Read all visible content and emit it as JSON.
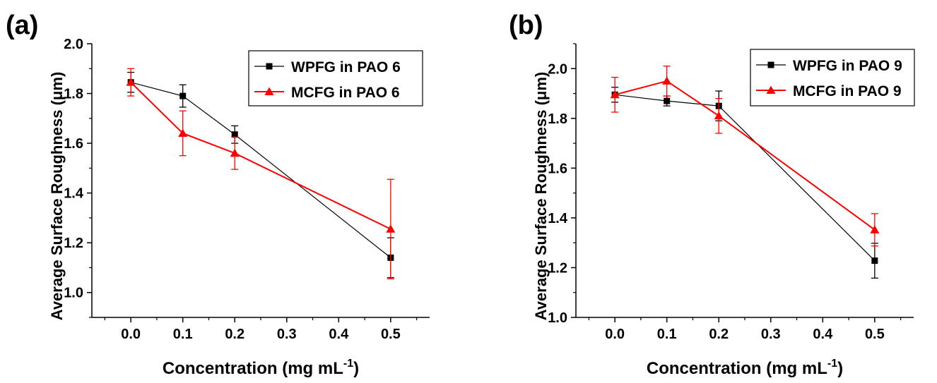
{
  "chart_data": [
    {
      "type": "line",
      "panel_label": "(a)",
      "xlabel": "Concentration (mg mL",
      "xlabel_sup": "-1",
      "xlabel_end": ")",
      "ylabel": "Average Surface Roughness (μm)",
      "xlim": [
        -0.075,
        0.575
      ],
      "ylim": [
        0.9,
        2.0
      ],
      "x_ticks": [
        0.0,
        0.1,
        0.2,
        0.3,
        0.4,
        0.5
      ],
      "x_tick_labels": [
        "0.0",
        "0.1",
        "0.2",
        "0.3",
        "0.4",
        "0.5"
      ],
      "y_ticks": [
        1.0,
        1.2,
        1.4,
        1.6,
        1.8,
        2.0
      ],
      "y_tick_labels": [
        "1.0",
        "1.2",
        "1.4",
        "1.6",
        "1.8",
        "2.0"
      ],
      "legend_position": "top-right",
      "series": [
        {
          "name": "WPFG in PAO 6",
          "color": "#000000",
          "marker": "square",
          "x": [
            0.0,
            0.1,
            0.2,
            0.5
          ],
          "values": [
            1.845,
            1.79,
            1.635,
            1.14
          ],
          "errors": [
            0.04,
            0.045,
            0.035,
            0.08
          ]
        },
        {
          "name": "MCFG in PAO 6",
          "color": "#ff0000",
          "marker": "triangle",
          "x": [
            0.0,
            0.1,
            0.2,
            0.5
          ],
          "values": [
            1.845,
            1.64,
            1.56,
            1.255
          ],
          "errors": [
            0.055,
            0.09,
            0.065,
            0.2
          ]
        }
      ]
    },
    {
      "type": "line",
      "panel_label": "(b)",
      "xlabel": "Concentration (mg mL",
      "xlabel_sup": "-1",
      "xlabel_end": ")",
      "ylabel": "Average Surface Roughness (μm)",
      "xlim": [
        -0.075,
        0.575
      ],
      "ylim": [
        1.0,
        2.1
      ],
      "x_ticks": [
        0.0,
        0.1,
        0.2,
        0.3,
        0.4,
        0.5
      ],
      "x_tick_labels": [
        "0.0",
        "0.1",
        "0.2",
        "0.3",
        "0.4",
        "0.5"
      ],
      "y_ticks": [
        1.0,
        1.2,
        1.4,
        1.6,
        1.8,
        2.0
      ],
      "y_tick_labels": [
        "1.0",
        "1.2",
        "1.4",
        "1.6",
        "1.8",
        "2.0"
      ],
      "legend_position": "top-right",
      "series": [
        {
          "name": "WPFG in PAO 9",
          "color": "#000000",
          "marker": "square",
          "x": [
            0.0,
            0.1,
            0.2,
            0.5
          ],
          "values": [
            1.895,
            1.87,
            1.85,
            1.228
          ],
          "errors": [
            0.03,
            0.02,
            0.06,
            0.07
          ]
        },
        {
          "name": "MCFG in PAO 9",
          "color": "#ff0000",
          "marker": "triangle",
          "x": [
            0.0,
            0.1,
            0.2,
            0.5
          ],
          "values": [
            1.895,
            1.95,
            1.81,
            1.352
          ],
          "errors": [
            0.07,
            0.06,
            0.07,
            0.065
          ]
        }
      ]
    }
  ]
}
